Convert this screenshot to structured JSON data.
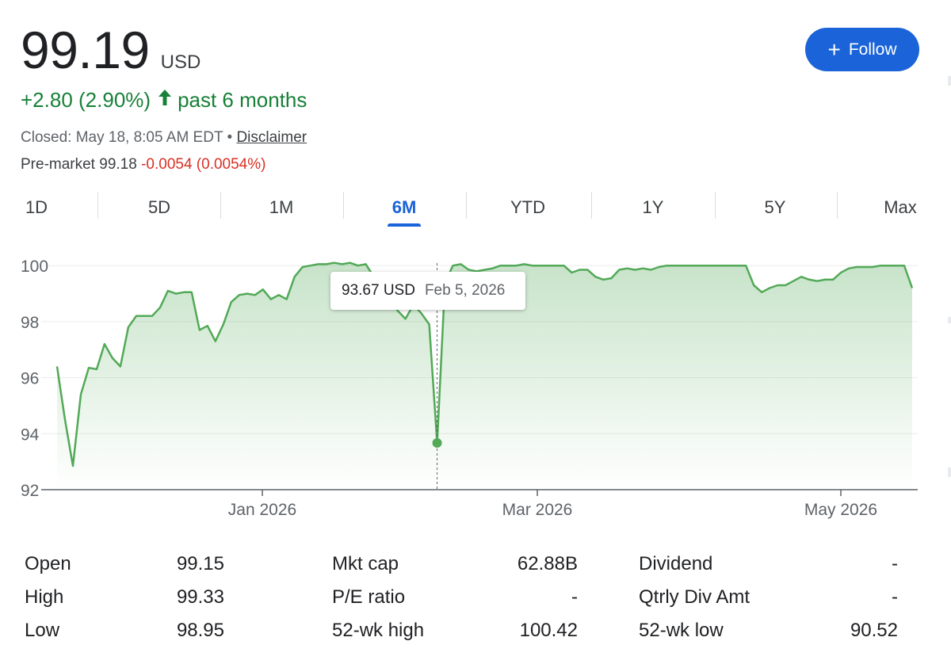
{
  "quote": {
    "price": "99.19",
    "currency": "USD",
    "change": "+2.80 (2.90%)",
    "change_arrow": "arrow-up-icon",
    "change_period": "past 6 months",
    "closed_text": "Closed: May 18, 8:05 AM EDT",
    "separator": "•",
    "disclaimer": "Disclaimer",
    "premarket_label": "Pre-market",
    "premarket_price": "99.18",
    "premarket_change": "-0.0054 (0.0054%)"
  },
  "follow_button": {
    "label": "Follow",
    "icon": "plus-icon"
  },
  "ranges": [
    {
      "label": "1D",
      "active": false
    },
    {
      "label": "5D",
      "active": false
    },
    {
      "label": "1M",
      "active": false
    },
    {
      "label": "6M",
      "active": true
    },
    {
      "label": "YTD",
      "active": false
    },
    {
      "label": "1Y",
      "active": false
    },
    {
      "label": "5Y",
      "active": false
    },
    {
      "label": "Max",
      "active": false
    }
  ],
  "tooltip": {
    "value": "93.67 USD",
    "date": "Feb 5, 2026"
  },
  "colors": {
    "up": "#188038",
    "down": "#d93025",
    "accent": "#1a63d8",
    "line": "#52a957"
  },
  "chart_data": {
    "type": "area",
    "xlabel": "",
    "ylabel": "",
    "ylim": [
      92,
      100.6
    ],
    "yticks": [
      "100",
      "98",
      "96",
      "94",
      "92"
    ],
    "xticks": [
      "Jan 2026",
      "Mar 2026",
      "May 2026"
    ],
    "grid": true,
    "highlight_point": {
      "x": "Feb 5, 2026",
      "y": 93.67
    },
    "series": [
      {
        "values": [
          96.4,
          94.5,
          92.85,
          95.4,
          96.35,
          96.3,
          97.2,
          96.7,
          96.4,
          97.8,
          98.2,
          98.2,
          98.2,
          98.5,
          99.1,
          99.0,
          99.05,
          99.05,
          97.7,
          97.85,
          97.3,
          97.9,
          98.7,
          98.95,
          99.0,
          98.95,
          99.15,
          98.8,
          98.95,
          98.8,
          99.6,
          99.95,
          100.0,
          100.05,
          100.05,
          100.1,
          100.05,
          100.1,
          100.0,
          100.05,
          99.6,
          99.0,
          98.7,
          98.4,
          98.1,
          98.6,
          98.3,
          97.9,
          93.67,
          99.4,
          100.0,
          100.05,
          99.85,
          99.8,
          99.85,
          99.9,
          100.0,
          100.0,
          100.0,
          100.05,
          100.0,
          100.0,
          100.0,
          100.0,
          100.0,
          99.75,
          99.85,
          99.85,
          99.6,
          99.5,
          99.55,
          99.85,
          99.9,
          99.85,
          99.9,
          99.85,
          99.95,
          100.0,
          100.0,
          100.0,
          100.0,
          100.0,
          100.0,
          100.0,
          100.0,
          100.0,
          100.0,
          100.0,
          99.3,
          99.05,
          99.2,
          99.3,
          99.3,
          99.45,
          99.6,
          99.5,
          99.45,
          99.5,
          99.5,
          99.75,
          99.9,
          99.95,
          99.95,
          99.95,
          100.0,
          100.0,
          100.0,
          100.0,
          99.2
        ]
      }
    ]
  },
  "stats": [
    {
      "label": "Open",
      "value": "99.15"
    },
    {
      "label": "High",
      "value": "99.33"
    },
    {
      "label": "Low",
      "value": "98.95"
    },
    {
      "label": "Mkt cap",
      "value": "62.88B"
    },
    {
      "label": "P/E ratio",
      "value": "-"
    },
    {
      "label": "52-wk high",
      "value": "100.42"
    },
    {
      "label": "Dividend",
      "value": "-"
    },
    {
      "label": "Qtrly Div Amt",
      "value": "-"
    },
    {
      "label": "52-wk low",
      "value": "90.52"
    }
  ]
}
